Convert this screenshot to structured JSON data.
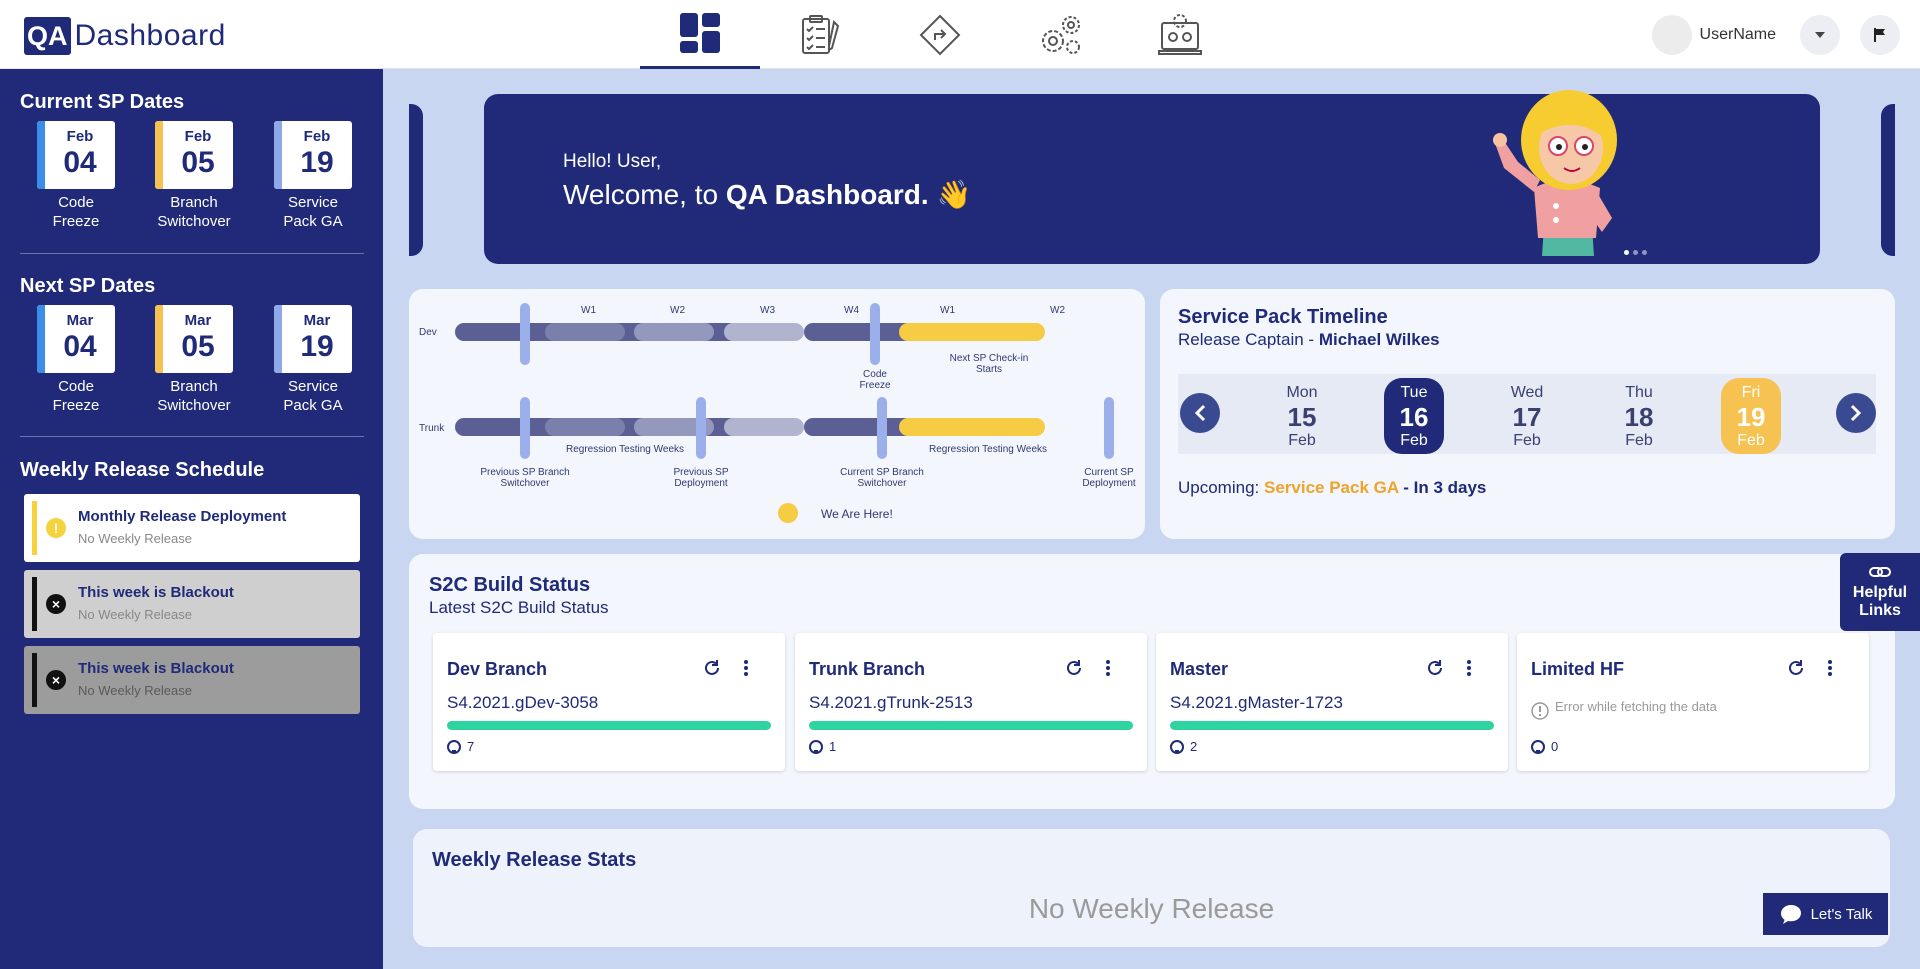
{
  "header": {
    "logo_qa": "QA",
    "logo_text": "Dashboard",
    "nav_icons": [
      "dashboard-icon",
      "checklist-icon",
      "diamond-icon",
      "gears-icon",
      "laptop-settings-icon"
    ],
    "username": "UserName"
  },
  "sidebar": {
    "current_title": "Current SP Dates",
    "current_dates": [
      {
        "month": "Feb",
        "day": "04",
        "label1": "Code",
        "label2": "Freeze",
        "color": "#3b8ee8"
      },
      {
        "month": "Feb",
        "day": "05",
        "label1": "Branch",
        "label2": "Switchover",
        "color": "#f6c251"
      },
      {
        "month": "Feb",
        "day": "19",
        "label1": "Service",
        "label2": "Pack GA",
        "color": "#8fa8e8"
      }
    ],
    "next_title": "Next SP Dates",
    "next_dates": [
      {
        "month": "Mar",
        "day": "04",
        "label1": "Code",
        "label2": "Freeze",
        "color": "#3b8ee8"
      },
      {
        "month": "Mar",
        "day": "05",
        "label1": "Branch",
        "label2": "Switchover",
        "color": "#f6c251"
      },
      {
        "month": "Mar",
        "day": "19",
        "label1": "Service",
        "label2": "Pack GA",
        "color": "#8fa8e8"
      }
    ],
    "weekly_title": "Weekly Release Schedule",
    "weekly": [
      {
        "title": "Monthly Release Deployment",
        "sub": "No Weekly Release",
        "bg": "#ffffff",
        "bar": "#f6d33c",
        "icon": "warning-icon"
      },
      {
        "title": "This week is Blackout",
        "sub": "No Weekly Release",
        "bg": "#cfcfcf",
        "bar": "#111111",
        "icon": "close-circle-icon"
      },
      {
        "title": "This week is Blackout",
        "sub": "No Weekly Release",
        "bg": "#9c9c9c",
        "bar": "#111111",
        "icon": "close-circle-icon"
      }
    ]
  },
  "banner": {
    "hello": "Hello! User,",
    "welcome_prefix": "Welcome, to ",
    "welcome_bold": "QA Dashboard.",
    "wave": "👋"
  },
  "timeline": {
    "dev_label": "Dev",
    "trunk_label": "Trunk",
    "weeks": [
      "W1",
      "W2",
      "W3",
      "W4",
      "W1",
      "W2"
    ],
    "code_freeze": "Code Freeze",
    "checkin": "Next SP Check-in Starts",
    "regression1": "Regression Testing Weeks",
    "regression2": "Regression Testing Weeks",
    "prev_switch": "Previous SP Branch Switchover",
    "prev_deploy": "Previous SP Deployment",
    "cur_switch": "Current SP Branch Switchover",
    "cur_deploy": "Current SP Deployment",
    "here": "We Are Here!"
  },
  "sp_timeline": {
    "title": "Service Pack Timeline",
    "captain_prefix": "Release Captain - ",
    "captain": "Michael Wilkes",
    "days": [
      {
        "dow": "Mon",
        "day": "15",
        "mon": "Feb",
        "state": "normal"
      },
      {
        "dow": "Tue",
        "day": "16",
        "mon": "Feb",
        "state": "selected"
      },
      {
        "dow": "Wed",
        "day": "17",
        "mon": "Feb",
        "state": "normal"
      },
      {
        "dow": "Thu",
        "day": "18",
        "mon": "Feb",
        "state": "normal"
      },
      {
        "dow": "Fri",
        "day": "19",
        "mon": "Feb",
        "state": "ga"
      }
    ],
    "upcoming_prefix": "Upcoming: ",
    "upcoming_event": "Service Pack GA",
    "upcoming_suffix": " - In 3 days"
  },
  "build_status": {
    "title": "S2C Build Status",
    "subtitle": "Latest S2C Build Status",
    "cards": [
      {
        "name": "Dev Branch",
        "version": "S4.2021.gDev-3058",
        "progress": 100,
        "count": "7",
        "error": ""
      },
      {
        "name": "Trunk Branch",
        "version": "S4.2021.gTrunk-2513",
        "progress": 100,
        "count": "1",
        "error": ""
      },
      {
        "name": "Master",
        "version": "S4.2021.gMaster-1723",
        "progress": 100,
        "count": "2",
        "error": ""
      },
      {
        "name": "Limited HF",
        "version": "",
        "progress": 0,
        "count": "0",
        "error": "Error while fetching the data"
      }
    ]
  },
  "weekly_stats": {
    "title": "Weekly Release Stats",
    "empty": "No Weekly Release"
  },
  "helpful_links": {
    "line1": "Helpful",
    "line2": "Links"
  },
  "chat": {
    "label": "Let's Talk"
  }
}
